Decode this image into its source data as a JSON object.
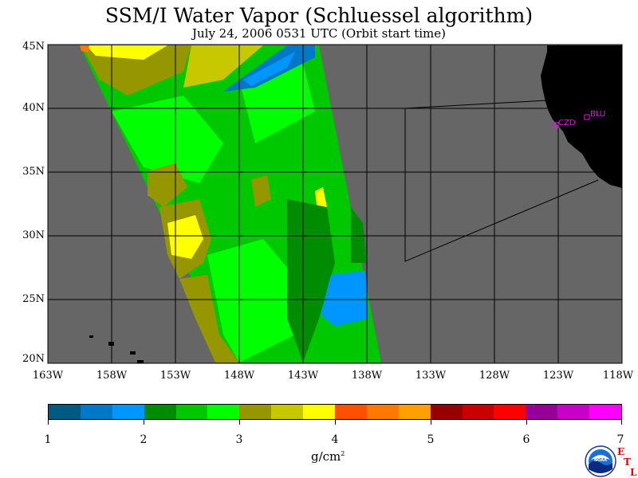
{
  "title": "SSM/I Water Vapor (Schluessel algorithm)",
  "subtitle": "July 24, 2006  0531 UTC  (Orbit start time)",
  "map": {
    "lat_labels": [
      "45N",
      "40N",
      "35N",
      "30N",
      "25N",
      "20N"
    ],
    "lon_labels": [
      "163W",
      "158W",
      "153W",
      "148W",
      "143W",
      "138W",
      "133W",
      "128W",
      "123W",
      "118W"
    ],
    "stations": [
      {
        "name": "CZD",
        "color": "#ff00ff"
      },
      {
        "name": "BLU",
        "color": "#ff00ff"
      }
    ],
    "colors": {
      "ocean": "#666666",
      "land": "#000000"
    }
  },
  "colorbar": {
    "colors": [
      "#005a82",
      "#0078c8",
      "#0096ff",
      "#008c00",
      "#00c800",
      "#00ff00",
      "#969600",
      "#c8c800",
      "#ffff00",
      "#ff5000",
      "#ff7800",
      "#ffa000",
      "#960000",
      "#c80000",
      "#ff0000",
      "#960096",
      "#c800c8",
      "#ff00ff"
    ],
    "labels": [
      "1",
      "2",
      "3",
      "4",
      "5",
      "6",
      "7"
    ],
    "units_main": "g/cm",
    "units_sup": "2"
  },
  "logo": {
    "name": "NOAA",
    "etl": [
      "E",
      "T",
      "L"
    ]
  }
}
